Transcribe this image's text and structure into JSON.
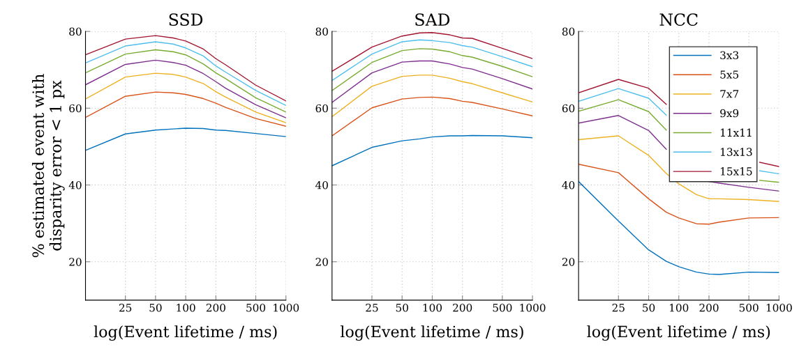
{
  "chart_data": [
    {
      "type": "line",
      "title": "SSD",
      "xlabel": "log(Event lifetime / ms)",
      "ylabel": "% estimated event with\ndisparity error < 1 px",
      "log": "x",
      "xlim": [
        10,
        1000
      ],
      "ylim": [
        10,
        80
      ],
      "xticks": [
        25,
        50,
        100,
        200,
        500,
        1000
      ],
      "yticks": [
        20,
        40,
        60,
        80
      ],
      "grid": true,
      "legend": false,
      "x": [
        10,
        25,
        50,
        75,
        100,
        150,
        200,
        250,
        500,
        1000
      ],
      "series": [
        {
          "color": "#0072bd",
          "values": [
            49.0,
            53.3,
            54.3,
            54.6,
            54.8,
            54.7,
            54.3,
            54.2,
            53.4,
            52.6
          ]
        },
        {
          "color": "#d95319",
          "values": [
            57.6,
            63.1,
            64.2,
            64.0,
            63.6,
            62.5,
            61.3,
            60.2,
            57.3,
            55.3
          ]
        },
        {
          "color": "#edb120",
          "values": [
            62.4,
            68.1,
            69.1,
            68.8,
            68.1,
            66.4,
            64.3,
            62.9,
            59.0,
            56.2
          ]
        },
        {
          "color": "#7e2f8e",
          "values": [
            66.1,
            71.4,
            72.5,
            71.9,
            71.2,
            69.0,
            66.9,
            65.2,
            60.9,
            57.5
          ]
        },
        {
          "color": "#77ac30",
          "values": [
            69.2,
            74.1,
            75.2,
            74.7,
            73.9,
            71.5,
            69.2,
            67.7,
            62.7,
            59.0
          ]
        },
        {
          "color": "#4dbeee",
          "values": [
            71.8,
            76.2,
            77.3,
            76.7,
            75.7,
            73.6,
            71.0,
            69.4,
            64.6,
            60.7
          ]
        },
        {
          "color": "#a2142f",
          "values": [
            73.9,
            78.0,
            78.9,
            78.3,
            77.5,
            75.4,
            72.9,
            71.3,
            66.0,
            61.9
          ]
        }
      ]
    },
    {
      "type": "line",
      "title": "SAD",
      "xlabel": "log(Event lifetime / ms)",
      "log": "x",
      "xlim": [
        10,
        1000
      ],
      "ylim": [
        10,
        80
      ],
      "xticks": [
        25,
        50,
        100,
        200,
        500,
        1000
      ],
      "yticks": [
        20,
        40,
        60,
        80
      ],
      "grid": true,
      "legend": false,
      "x": [
        10,
        25,
        50,
        75,
        100,
        150,
        200,
        250,
        500,
        1000
      ],
      "series": [
        {
          "color": "#0072bd",
          "values": [
            45.0,
            49.8,
            51.5,
            52.0,
            52.5,
            52.8,
            52.8,
            52.9,
            52.8,
            52.3
          ]
        },
        {
          "color": "#d95319",
          "values": [
            52.8,
            60.1,
            62.4,
            62.8,
            62.9,
            62.5,
            61.8,
            61.5,
            59.8,
            58.0
          ]
        },
        {
          "color": "#edb120",
          "values": [
            57.8,
            65.7,
            68.3,
            68.6,
            68.6,
            67.8,
            66.9,
            66.4,
            64.0,
            61.6
          ]
        },
        {
          "color": "#7e2f8e",
          "values": [
            61.5,
            69.2,
            72.0,
            72.3,
            72.3,
            71.5,
            70.6,
            70.2,
            67.7,
            65.0
          ]
        },
        {
          "color": "#77ac30",
          "values": [
            64.6,
            71.9,
            75.0,
            75.5,
            75.4,
            74.7,
            73.7,
            73.3,
            70.9,
            68.2
          ]
        },
        {
          "color": "#4dbeee",
          "values": [
            67.2,
            74.1,
            77.3,
            77.8,
            77.6,
            77.1,
            76.3,
            75.9,
            73.4,
            70.8
          ]
        },
        {
          "color": "#a2142f",
          "values": [
            69.6,
            75.9,
            78.8,
            79.6,
            79.7,
            79.1,
            78.3,
            78.2,
            75.6,
            72.9
          ]
        }
      ]
    },
    {
      "type": "line",
      "title": "NCC",
      "xlabel": "log(Event lifetime / ms)",
      "log": "x",
      "xlim": [
        10,
        1000
      ],
      "ylim": [
        10,
        80
      ],
      "xticks": [
        25,
        50,
        100,
        200,
        500,
        1000
      ],
      "yticks": [
        20,
        40,
        60,
        80
      ],
      "grid": true,
      "legend": "top right",
      "x": [
        10,
        25,
        50,
        75,
        100,
        150,
        200,
        250,
        500,
        1000
      ],
      "series": [
        {
          "name": "3x3",
          "color": "#0072bd",
          "values": [
            40.9,
            30.6,
            23.1,
            20.1,
            18.7,
            17.3,
            16.8,
            16.7,
            17.3,
            17.2
          ]
        },
        {
          "name": "5x5",
          "color": "#d95319",
          "values": [
            45.4,
            43.2,
            36.4,
            32.9,
            31.4,
            29.9,
            29.8,
            30.3,
            31.4,
            31.5
          ]
        },
        {
          "name": "7x7",
          "color": "#edb120",
          "values": [
            51.8,
            52.8,
            47.7,
            43.0,
            40.3,
            37.5,
            36.4,
            36.4,
            36.2,
            35.7
          ]
        },
        {
          "name": "9x9",
          "color": "#7e2f8e",
          "values": [
            56.1,
            58.1,
            54.2,
            49.3,
            null,
            null,
            40.9,
            40.5,
            39.4,
            38.4
          ]
        },
        {
          "name": "11x11",
          "color": "#77ac30",
          "x": [
            10,
            25,
            50,
            75,
            100,
            150,
            200,
            250,
            640,
            1000
          ],
          "values": [
            59.2,
            62.2,
            59.1,
            54.3,
            null,
            null,
            null,
            null,
            41.2,
            40.7
          ]
        },
        {
          "name": "13x13",
          "color": "#4dbeee",
          "x": [
            10,
            25,
            50,
            75,
            100,
            150,
            200,
            250,
            640,
            1000
          ],
          "values": [
            61.8,
            65.1,
            62.6,
            58.2,
            null,
            null,
            null,
            null,
            43.7,
            42.9
          ]
        },
        {
          "name": "15x15",
          "color": "#a2142f",
          "x": [
            10,
            25,
            50,
            75,
            100,
            150,
            200,
            250,
            640,
            1000
          ],
          "values": [
            64.0,
            67.5,
            65.2,
            61.0,
            null,
            null,
            null,
            null,
            45.9,
            44.8
          ]
        }
      ]
    }
  ]
}
